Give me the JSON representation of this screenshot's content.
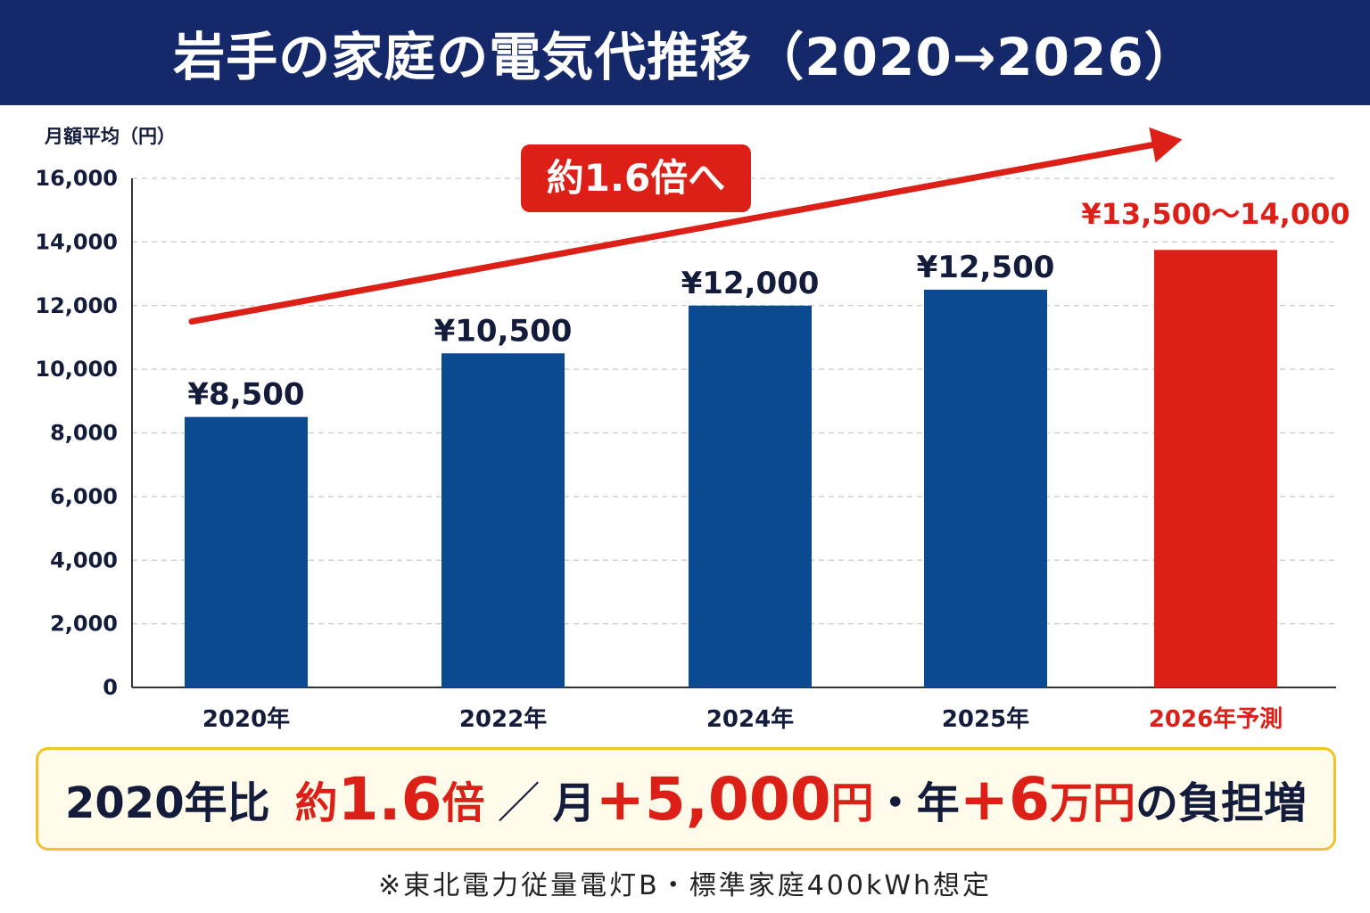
{
  "title": "岩手の家庭の電気代推移（2020→2026）",
  "colors": {
    "header_bg": "#14286a",
    "bar_blue": "#0b4a91",
    "accent_red": "#dc2018",
    "text_dark": "#141c3c",
    "summary_bg": "#fffbea",
    "summary_border": "#f3c12a"
  },
  "chart_data": {
    "type": "bar",
    "ylabel": "月額平均（円）",
    "ylim": [
      0,
      16000
    ],
    "yticks": [
      "0",
      "2,000",
      "4,000",
      "6,000",
      "8,000",
      "10,000",
      "12,000",
      "14,000",
      "16,000"
    ],
    "ytick_values": [
      0,
      2000,
      4000,
      6000,
      8000,
      10000,
      12000,
      14000,
      16000
    ],
    "grid": true,
    "categories": [
      "2020年",
      "2022年",
      "2024年",
      "2025年",
      "2026年予測"
    ],
    "values": [
      8500,
      10500,
      12000,
      12500,
      13750
    ],
    "value_labels": [
      "¥8,500",
      "¥10,500",
      "¥12,000",
      "¥12,500",
      "¥13,500～14,000"
    ],
    "highlight_index": 4,
    "annotation": {
      "text": "約1.6倍へ",
      "type": "trend-arrow",
      "from_value": 11500,
      "to_value": 17050
    }
  },
  "summary": {
    "part1": "2020年比",
    "part2_prefix": "約",
    "part2_big": "1.6",
    "part2_suffix": "倍",
    "separator": "／",
    "part3_prefix": "月",
    "part3_big": "+5,000",
    "part3_unit": "円",
    "dot": "・",
    "part4_prefix": "年",
    "part4_big": "+6",
    "part4_unit": "万円",
    "part5": "の負担増"
  },
  "footnote": "※東北電力従量電灯B・標準家庭400kWh想定"
}
